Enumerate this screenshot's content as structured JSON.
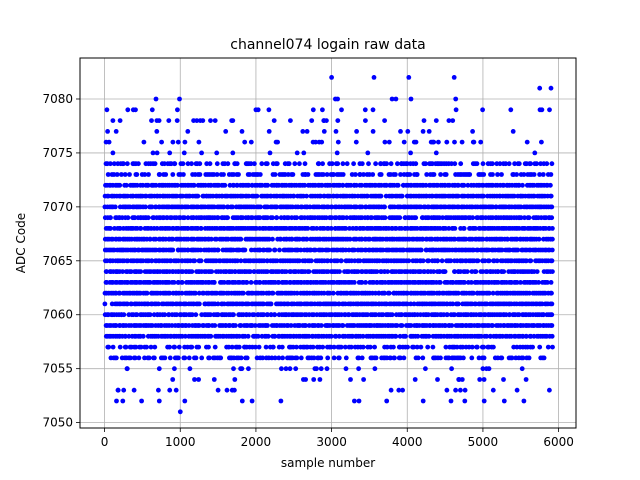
{
  "chart_data": {
    "type": "scatter",
    "title": "channel074 logain raw data",
    "xlabel": "sample number",
    "ylabel": "ADC Code",
    "xlim": [
      -325,
      6230
    ],
    "ylim": [
      7049.5,
      7083.8
    ],
    "xticks": [
      0,
      1000,
      2000,
      3000,
      4000,
      5000,
      6000
    ],
    "yticks": [
      7050,
      7055,
      7060,
      7065,
      7070,
      7075,
      7080
    ],
    "grid": true,
    "marker_color": "#0000ff",
    "series": [
      {
        "density_profile": {
          "dense_min": 7058,
          "dense_max": 7072,
          "frequent_min": 7056,
          "frequent_max": 7074,
          "sparse_min": 7052,
          "sparse_max": 7079,
          "n_samples": 5900,
          "x_step": 25
        },
        "outliers": [
          {
            "x": 30,
            "y": 7079
          },
          {
            "x": 20,
            "y": 7076
          },
          {
            "x": 60,
            "y": 7076
          },
          {
            "x": 110,
            "y": 7078
          },
          {
            "x": 180,
            "y": 7053
          },
          {
            "x": 240,
            "y": 7052
          },
          {
            "x": 300,
            "y": 7055
          },
          {
            "x": 390,
            "y": 7053
          },
          {
            "x": 620,
            "y": 7078
          },
          {
            "x": 680,
            "y": 7080
          },
          {
            "x": 720,
            "y": 7078
          },
          {
            "x": 860,
            "y": 7053
          },
          {
            "x": 900,
            "y": 7054
          },
          {
            "x": 990,
            "y": 7080
          },
          {
            "x": 1000,
            "y": 7051
          },
          {
            "x": 1060,
            "y": 7052
          },
          {
            "x": 1100,
            "y": 7077
          },
          {
            "x": 1400,
            "y": 7078
          },
          {
            "x": 1450,
            "y": 7054
          },
          {
            "x": 1500,
            "y": 7053
          },
          {
            "x": 1600,
            "y": 7077
          },
          {
            "x": 1680,
            "y": 7078
          },
          {
            "x": 1820,
            "y": 7052
          },
          {
            "x": 1900,
            "y": 7055
          },
          {
            "x": 2000,
            "y": 7079
          },
          {
            "x": 2030,
            "y": 7079
          },
          {
            "x": 2450,
            "y": 7055
          },
          {
            "x": 2620,
            "y": 7077
          },
          {
            "x": 2800,
            "y": 7055
          },
          {
            "x": 2900,
            "y": 7078
          },
          {
            "x": 3000,
            "y": 7082
          },
          {
            "x": 3050,
            "y": 7080
          },
          {
            "x": 3080,
            "y": 7080
          },
          {
            "x": 3250,
            "y": 7054
          },
          {
            "x": 3330,
            "y": 7077
          },
          {
            "x": 3560,
            "y": 7082
          },
          {
            "x": 3700,
            "y": 7078
          },
          {
            "x": 3800,
            "y": 7080
          },
          {
            "x": 3850,
            "y": 7080
          },
          {
            "x": 4020,
            "y": 7082
          },
          {
            "x": 4050,
            "y": 7080
          },
          {
            "x": 4240,
            "y": 7055
          },
          {
            "x": 4400,
            "y": 7054
          },
          {
            "x": 4550,
            "y": 7078
          },
          {
            "x": 4600,
            "y": 7078
          },
          {
            "x": 4620,
            "y": 7082
          },
          {
            "x": 4640,
            "y": 7080
          },
          {
            "x": 4680,
            "y": 7054
          },
          {
            "x": 4760,
            "y": 7052
          },
          {
            "x": 5000,
            "y": 7055
          },
          {
            "x": 5080,
            "y": 7055
          },
          {
            "x": 5400,
            "y": 7077
          },
          {
            "x": 5750,
            "y": 7081
          },
          {
            "x": 5780,
            "y": 7079
          },
          {
            "x": 5900,
            "y": 7081
          },
          {
            "x": 5880,
            "y": 7079
          },
          {
            "x": 5920,
            "y": 7057
          }
        ]
      }
    ]
  }
}
